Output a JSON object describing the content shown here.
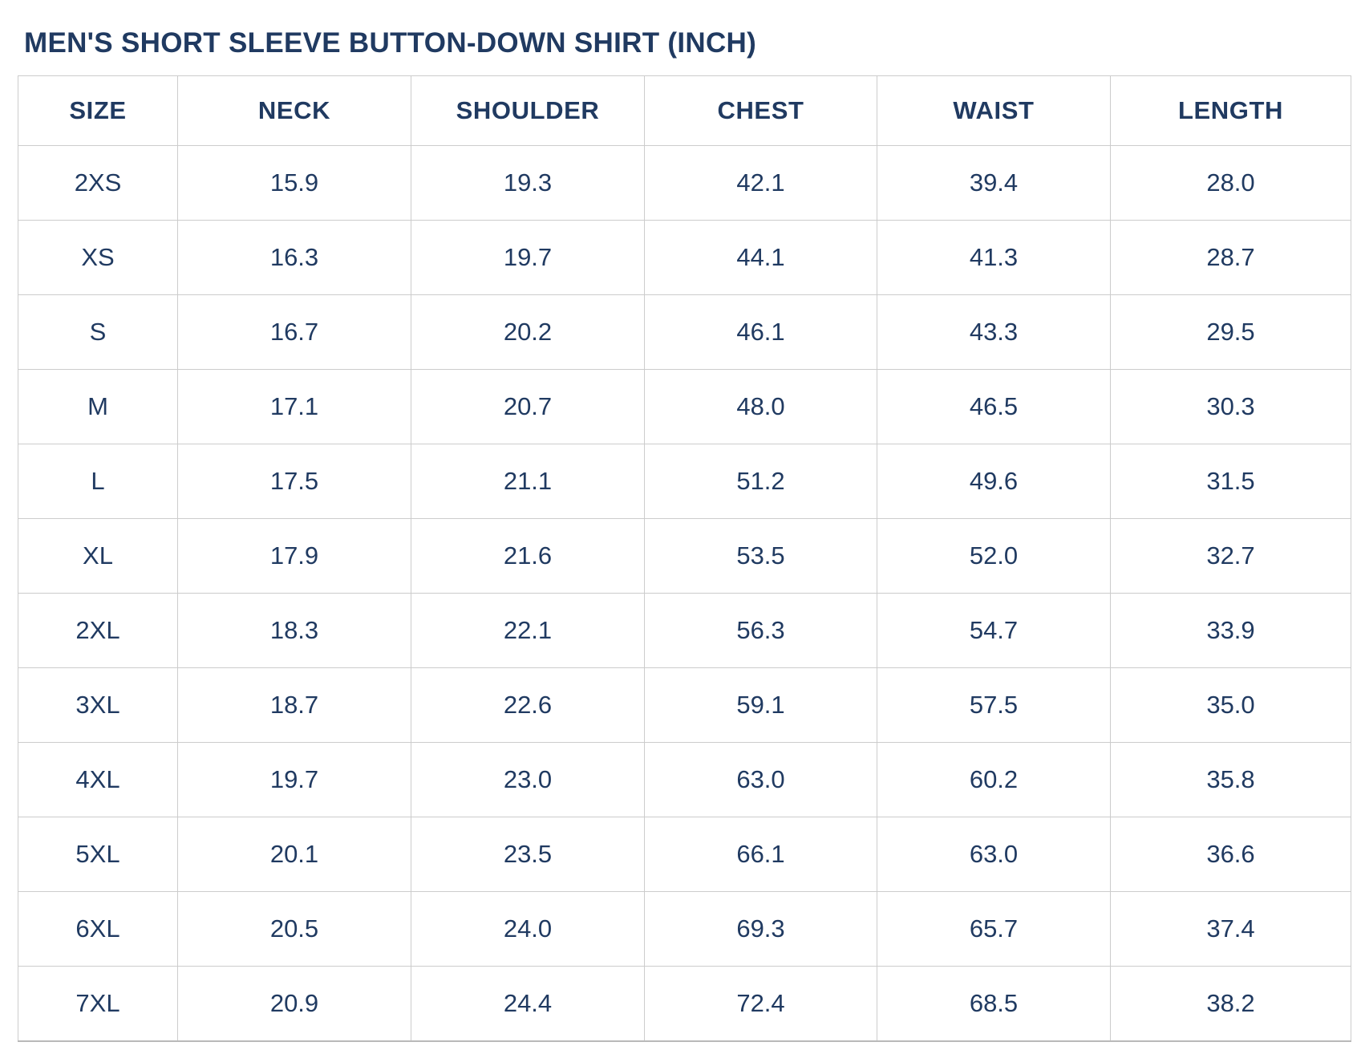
{
  "page": {
    "title": "MEN'S SHORT SLEEVE BUTTON-DOWN SHIRT (INCH)"
  },
  "colors": {
    "text_navy": "#203a61",
    "grid_border": "#cccccc",
    "bottom_border": "#b9b9b9",
    "background": "#ffffff"
  },
  "chart_data": {
    "type": "table",
    "title": "MEN'S SHORT SLEEVE BUTTON-DOWN SHIRT (INCH)",
    "unit": "inch",
    "headers": [
      "SIZE",
      "NECK",
      "SHOULDER",
      "CHEST",
      "WAIST",
      "LENGTH"
    ],
    "rows": [
      {
        "size": "2XS",
        "cells": [
          "15.9",
          "19.3",
          "42.1",
          "39.4",
          "28.0"
        ]
      },
      {
        "size": "XS",
        "cells": [
          "16.3",
          "19.7",
          "44.1",
          "41.3",
          "28.7"
        ]
      },
      {
        "size": "S",
        "cells": [
          "16.7",
          "20.2",
          "46.1",
          "43.3",
          "29.5"
        ]
      },
      {
        "size": "M",
        "cells": [
          "17.1",
          "20.7",
          "48.0",
          "46.5",
          "30.3"
        ]
      },
      {
        "size": "L",
        "cells": [
          "17.5",
          "21.1",
          "51.2",
          "49.6",
          "31.5"
        ]
      },
      {
        "size": "XL",
        "cells": [
          "17.9",
          "21.6",
          "53.5",
          "52.0",
          "32.7"
        ]
      },
      {
        "size": "2XL",
        "cells": [
          "18.3",
          "22.1",
          "56.3",
          "54.7",
          "33.9"
        ]
      },
      {
        "size": "3XL",
        "cells": [
          "18.7",
          "22.6",
          "59.1",
          "57.5",
          "35.0"
        ]
      },
      {
        "size": "4XL",
        "cells": [
          "19.7",
          "23.0",
          "63.0",
          "60.2",
          "35.8"
        ]
      },
      {
        "size": "5XL",
        "cells": [
          "20.1",
          "23.5",
          "66.1",
          "63.0",
          "36.6"
        ]
      },
      {
        "size": "6XL",
        "cells": [
          "20.5",
          "24.0",
          "69.3",
          "65.7",
          "37.4"
        ]
      },
      {
        "size": "7XL",
        "cells": [
          "20.9",
          "24.4",
          "72.4",
          "68.5",
          "38.2"
        ]
      }
    ]
  }
}
